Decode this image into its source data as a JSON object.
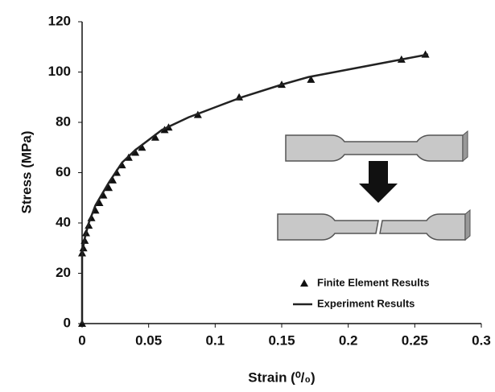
{
  "chart_data": {
    "type": "line",
    "x_label": "Strain (⁰/₀)",
    "y_label": "Stress (MPa)",
    "xlim": [
      0,
      0.3
    ],
    "xticks": [
      0,
      0.05,
      0.1,
      0.15,
      0.2,
      0.25,
      0.3
    ],
    "ylim": [
      0,
      120
    ],
    "yticks": [
      0,
      20,
      40,
      60,
      80,
      100,
      120
    ],
    "grid": false,
    "legend": "lower right",
    "series": [
      {
        "name": "Finite Element Results",
        "color": "#111111",
        "mode": "markers",
        "x": [
          0,
          0,
          0.001,
          0.002,
          0.003,
          0.005,
          0.007,
          0.01,
          0.013,
          0.016,
          0.02,
          0.023,
          0.026,
          0.03,
          0.035,
          0.04,
          0.045,
          0.055,
          0.062,
          0.065,
          0.087,
          0.118,
          0.15,
          0.172,
          0.24,
          0.258
        ],
        "values": [
          0,
          28,
          30,
          33,
          36,
          39,
          42,
          45,
          48,
          51,
          54,
          57,
          60,
          63,
          66,
          68,
          70,
          74,
          77,
          78,
          83,
          90,
          95,
          97,
          105,
          107
        ]
      },
      {
        "name": "Experiment Results",
        "color": "#222222",
        "mode": "line",
        "x": [
          0,
          0,
          0.002,
          0.005,
          0.01,
          0.02,
          0.03,
          0.04,
          0.05,
          0.06,
          0.08,
          0.1,
          0.12,
          0.15,
          0.17,
          0.2,
          0.22,
          0.24,
          0.26
        ],
        "values": [
          0,
          28,
          34,
          40,
          47,
          56,
          64,
          69,
          73,
          77,
          82,
          86,
          90,
          95,
          98,
          101,
          103,
          105,
          107
        ]
      }
    ]
  }
}
